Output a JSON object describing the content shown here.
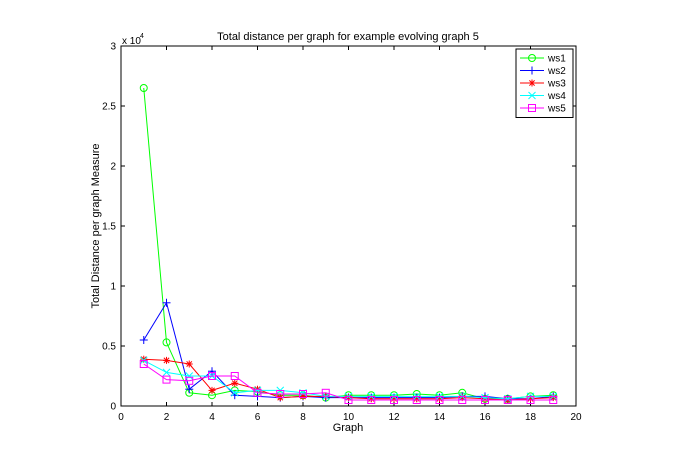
{
  "chart_data": {
    "type": "line",
    "title": "Total distance per graph for example evolving graph 5",
    "xlabel": "Graph",
    "ylabel": "Total Distance per graph Measure",
    "y_multiplier": "x 10",
    "y_multiplier_exp": "4",
    "xlim": [
      0,
      20
    ],
    "ylim": [
      0,
      30000
    ],
    "x_ticks": [
      0,
      2,
      4,
      6,
      8,
      10,
      12,
      14,
      16,
      18,
      20
    ],
    "y_ticks": [
      0,
      5000,
      10000,
      15000,
      20000,
      25000,
      30000
    ],
    "y_tick_labels": [
      "0",
      "0.5",
      "1",
      "1.5",
      "2",
      "2.5",
      "3"
    ],
    "grid": false,
    "legend_position": "top-right",
    "x": [
      1,
      2,
      3,
      4,
      5,
      6,
      7,
      8,
      9,
      10,
      11,
      12,
      13,
      14,
      15,
      16,
      17,
      18,
      19
    ],
    "series": [
      {
        "name": "ws1",
        "color": "#00ff00",
        "marker": "circle",
        "values": [
          26500,
          5300,
          1100,
          900,
          1300,
          1200,
          900,
          900,
          700,
          900,
          900,
          900,
          1000,
          900,
          1100,
          600,
          600,
          800,
          900
        ]
      },
      {
        "name": "ws2",
        "color": "#0000ff",
        "marker": "plus",
        "values": [
          5500,
          8600,
          1400,
          2900,
          900,
          800,
          700,
          800,
          700,
          700,
          700,
          700,
          700,
          700,
          800,
          800,
          600,
          600,
          800
        ]
      },
      {
        "name": "ws3",
        "color": "#ff0000",
        "marker": "asterisk",
        "values": [
          3900,
          3800,
          3500,
          1300,
          1900,
          1400,
          700,
          800,
          800,
          700,
          600,
          600,
          600,
          600,
          700,
          600,
          500,
          600,
          700
        ]
      },
      {
        "name": "ws4",
        "color": "#00ffff",
        "marker": "x",
        "values": [
          3800,
          2800,
          2500,
          2500,
          1100,
          1300,
          1300,
          1100,
          800,
          800,
          800,
          800,
          800,
          800,
          800,
          700,
          600,
          800,
          800
        ]
      },
      {
        "name": "ws5",
        "color": "#ff00ff",
        "marker": "square",
        "values": [
          3500,
          2200,
          2100,
          2500,
          2500,
          1100,
          1000,
          1000,
          1100,
          500,
          500,
          500,
          500,
          500,
          500,
          500,
          500,
          500,
          500
        ]
      }
    ]
  }
}
